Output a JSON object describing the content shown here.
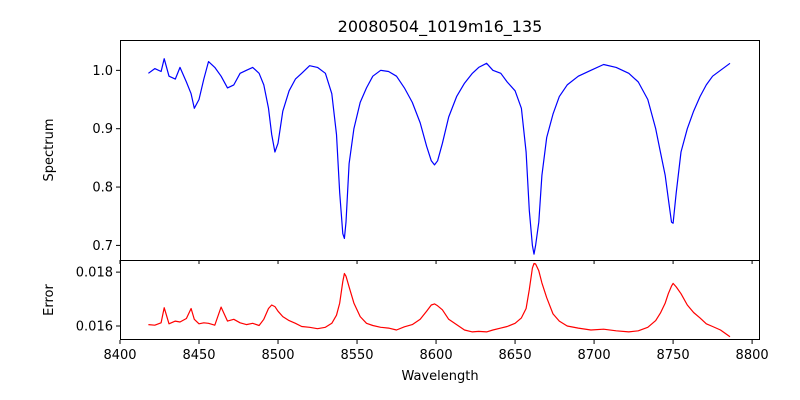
{
  "chart_data": [
    {
      "type": "line",
      "title": "20080504_1019m16_135",
      "xlabel": "",
      "ylabel": "Spectrum",
      "xlim": [
        8400,
        8805
      ],
      "ylim": [
        0.675,
        1.052
      ],
      "xticks": [
        8400,
        8450,
        8500,
        8550,
        8600,
        8650,
        8700,
        8750,
        8800
      ],
      "xtick_labels": [],
      "yticks": [
        0.7,
        0.8,
        0.9,
        1.0
      ],
      "ytick_labels": [
        "0.7",
        "0.8",
        "0.9",
        "1.0"
      ],
      "grid": false,
      "series": [
        {
          "color": "#0000ff",
          "x": [
            8418,
            8422,
            8426,
            8428,
            8431,
            8435,
            8438,
            8442,
            8445,
            8447,
            8450,
            8453,
            8456,
            8460,
            8464,
            8468,
            8472,
            8476,
            8480,
            8484,
            8488,
            8491,
            8494,
            8496,
            8498,
            8500,
            8503,
            8507,
            8511,
            8515,
            8520,
            8525,
            8530,
            8534,
            8537,
            8539,
            8541,
            8542,
            8543,
            8545,
            8548,
            8552,
            8556,
            8560,
            8565,
            8570,
            8575,
            8580,
            8585,
            8590,
            8594,
            8597,
            8599,
            8601,
            8604,
            8608,
            8613,
            8618,
            8623,
            8627,
            8632,
            8636,
            8641,
            8645,
            8650,
            8654,
            8657,
            8659,
            8661,
            8662,
            8663,
            8665,
            8667,
            8670,
            8674,
            8678,
            8683,
            8690,
            8698,
            8706,
            8714,
            8722,
            8728,
            8734,
            8739,
            8742,
            8745,
            8747,
            8749,
            8750,
            8752,
            8755,
            8759,
            8763,
            8767,
            8771,
            8775,
            8780,
            8786
          ],
          "values": [
            0.995,
            1.003,
            0.998,
            1.02,
            0.99,
            0.985,
            1.005,
            0.98,
            0.96,
            0.935,
            0.95,
            0.985,
            1.015,
            1.005,
            0.99,
            0.97,
            0.975,
            0.995,
            1.0,
            1.005,
            0.995,
            0.975,
            0.935,
            0.89,
            0.86,
            0.875,
            0.93,
            0.965,
            0.985,
            0.995,
            1.008,
            1.005,
            0.995,
            0.96,
            0.89,
            0.79,
            0.72,
            0.712,
            0.74,
            0.84,
            0.9,
            0.945,
            0.97,
            0.99,
            1.0,
            0.998,
            0.99,
            0.97,
            0.945,
            0.91,
            0.87,
            0.845,
            0.838,
            0.845,
            0.875,
            0.92,
            0.955,
            0.978,
            0.995,
            1.005,
            1.012,
            1.0,
            0.995,
            0.98,
            0.965,
            0.935,
            0.86,
            0.76,
            0.7,
            0.685,
            0.7,
            0.74,
            0.82,
            0.885,
            0.925,
            0.955,
            0.975,
            0.99,
            1.0,
            1.01,
            1.005,
            0.995,
            0.98,
            0.95,
            0.9,
            0.86,
            0.82,
            0.78,
            0.74,
            0.738,
            0.79,
            0.86,
            0.9,
            0.93,
            0.955,
            0.975,
            0.99,
            1.0,
            1.012
          ]
        }
      ]
    },
    {
      "type": "line",
      "title": "",
      "xlabel": "Wavelength",
      "ylabel": "Error",
      "xlim": [
        8400,
        8805
      ],
      "ylim": [
        0.01548,
        0.01845
      ],
      "xticks": [
        8400,
        8450,
        8500,
        8550,
        8600,
        8650,
        8700,
        8750,
        8800
      ],
      "xtick_labels": [
        "8400",
        "8450",
        "8500",
        "8550",
        "8600",
        "8650",
        "8700",
        "8750",
        "8800"
      ],
      "yticks": [
        0.016,
        0.018
      ],
      "ytick_labels": [
        "0.016",
        "0.018"
      ],
      "grid": false,
      "series": [
        {
          "color": "#ff0000",
          "x": [
            8418,
            8422,
            8426,
            8428,
            8431,
            8435,
            8438,
            8442,
            8445,
            8447,
            8450,
            8453,
            8456,
            8460,
            8464,
            8468,
            8472,
            8476,
            8480,
            8484,
            8488,
            8491,
            8494,
            8496,
            8498,
            8500,
            8503,
            8507,
            8511,
            8515,
            8520,
            8525,
            8530,
            8534,
            8537,
            8539,
            8541,
            8542,
            8543,
            8545,
            8548,
            8552,
            8556,
            8560,
            8565,
            8570,
            8575,
            8580,
            8585,
            8590,
            8594,
            8597,
            8599,
            8601,
            8604,
            8608,
            8613,
            8618,
            8623,
            8627,
            8632,
            8636,
            8641,
            8645,
            8650,
            8654,
            8657,
            8659,
            8661,
            8662,
            8663,
            8665,
            8667,
            8670,
            8674,
            8678,
            8683,
            8690,
            8698,
            8706,
            8714,
            8722,
            8728,
            8734,
            8739,
            8742,
            8745,
            8747,
            8749,
            8750,
            8752,
            8755,
            8759,
            8763,
            8767,
            8771,
            8775,
            8780,
            8786
          ],
          "values": [
            0.01605,
            0.01603,
            0.01612,
            0.01668,
            0.01608,
            0.01618,
            0.01615,
            0.01628,
            0.01665,
            0.01625,
            0.01608,
            0.01612,
            0.0161,
            0.01603,
            0.0167,
            0.01618,
            0.01625,
            0.01612,
            0.01605,
            0.0161,
            0.01602,
            0.01625,
            0.01665,
            0.01678,
            0.01672,
            0.01655,
            0.01635,
            0.0162,
            0.0161,
            0.01598,
            0.01595,
            0.0159,
            0.01595,
            0.0161,
            0.0164,
            0.01685,
            0.01765,
            0.01795,
            0.01785,
            0.01745,
            0.01685,
            0.01635,
            0.0161,
            0.01602,
            0.01595,
            0.01592,
            0.01585,
            0.01597,
            0.01605,
            0.01625,
            0.01655,
            0.01678,
            0.01682,
            0.01675,
            0.0166,
            0.01625,
            0.01605,
            0.01585,
            0.01578,
            0.0158,
            0.01578,
            0.01585,
            0.01592,
            0.01598,
            0.0161,
            0.0163,
            0.01665,
            0.01735,
            0.01815,
            0.01832,
            0.0183,
            0.01805,
            0.0176,
            0.01705,
            0.01645,
            0.01618,
            0.016,
            0.01592,
            0.01585,
            0.01588,
            0.01582,
            0.01578,
            0.01582,
            0.01595,
            0.0162,
            0.01648,
            0.01685,
            0.0172,
            0.01748,
            0.01758,
            0.01745,
            0.0172,
            0.01678,
            0.0165,
            0.0163,
            0.01608,
            0.01598,
            0.01585,
            0.0156
          ]
        }
      ]
    }
  ]
}
